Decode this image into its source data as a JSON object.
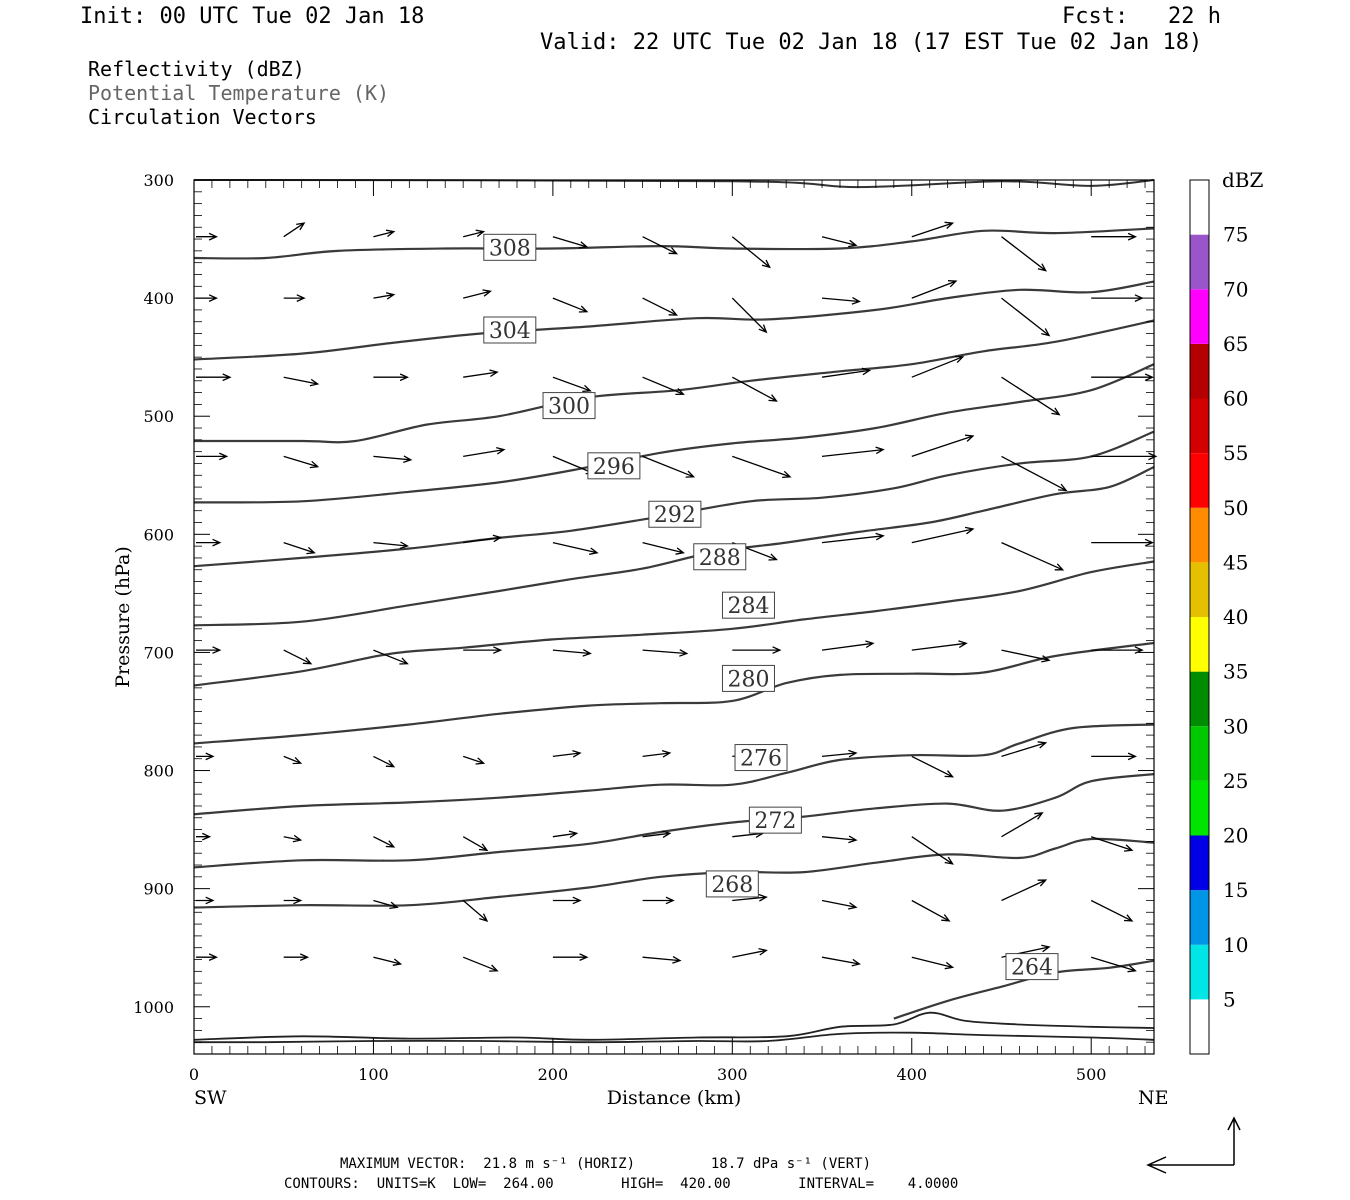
{
  "header": {
    "init": "Init: 00 UTC Tue 02 Jan 18",
    "fcst": "Fcst:   22 h",
    "valid": "Valid: 22 UTC Tue 02 Jan 18 (17 EST Tue 02 Jan 18)"
  },
  "fields": [
    {
      "label": "Reflectivity (dBZ)",
      "color": "#000000"
    },
    {
      "label": "Potential Temperature (K)",
      "color": "#666666"
    },
    {
      "label": "Circulation Vectors",
      "color": "#000000"
    }
  ],
  "footer": {
    "line1": "MAXIMUM VECTOR:  21.8 m s⁻¹ (HORIZ)         18.7 dPa s⁻¹ (VERT)",
    "line2": "CONTOURS:  UNITS=K  LOW=  264.00        HIGH=  420.00        INTERVAL=    4.0000"
  },
  "chart_data": {
    "type": "cross-section contour + vector",
    "xlabel": "Distance (km)",
    "ylabel": "Pressure (hPa)",
    "xlim": [
      0,
      535
    ],
    "ylim": [
      1040,
      300
    ],
    "x_ticks": [
      0,
      100,
      200,
      300,
      400,
      500
    ],
    "y_ticks": [
      300,
      400,
      500,
      600,
      700,
      800,
      900,
      1000
    ],
    "x_end_labels": {
      "left": "SW",
      "right": "NE"
    },
    "colorbar": {
      "unit": "dBZ",
      "levels": [
        5,
        10,
        15,
        20,
        25,
        30,
        35,
        40,
        45,
        50,
        55,
        60,
        65,
        70,
        75
      ],
      "colors": [
        "#ffffff",
        "#00e5e5",
        "#0095e5",
        "#0000e5",
        "#00e500",
        "#00c800",
        "#008c00",
        "#ffff00",
        "#e5c000",
        "#ff8c00",
        "#ff0000",
        "#d40000",
        "#b40000",
        "#ff00ff",
        "#9955c9",
        "#ffffff"
      ]
    },
    "contours": [
      {
        "label": "308",
        "label_pos": [
          176,
          357
        ],
        "points": [
          [
            0,
            366
          ],
          [
            40,
            366
          ],
          [
            80,
            360
          ],
          [
            140,
            358
          ],
          [
            200,
            358
          ],
          [
            260,
            356
          ],
          [
            300,
            358
          ],
          [
            360,
            358
          ],
          [
            400,
            352
          ],
          [
            440,
            343
          ],
          [
            480,
            345
          ],
          [
            535,
            341
          ]
        ]
      },
      {
        "label": "304",
        "label_pos": [
          176,
          427
        ],
        "points": [
          [
            0,
            452
          ],
          [
            60,
            447
          ],
          [
            110,
            438
          ],
          [
            160,
            430
          ],
          [
            220,
            424
          ],
          [
            280,
            417
          ],
          [
            320,
            418
          ],
          [
            380,
            410
          ],
          [
            420,
            400
          ],
          [
            460,
            393
          ],
          [
            500,
            395
          ],
          [
            535,
            386
          ]
        ]
      },
      {
        "label": "300",
        "label_pos": [
          209,
          491
        ],
        "points": [
          [
            0,
            521
          ],
          [
            60,
            521
          ],
          [
            90,
            521
          ],
          [
            130,
            507
          ],
          [
            170,
            500
          ],
          [
            220,
            484
          ],
          [
            270,
            478
          ],
          [
            310,
            470
          ],
          [
            360,
            462
          ],
          [
            400,
            456
          ],
          [
            440,
            445
          ],
          [
            480,
            437
          ],
          [
            535,
            419
          ]
        ]
      },
      {
        "label": "296",
        "label_pos": [
          234,
          542
        ],
        "points": [
          [
            0,
            573
          ],
          [
            60,
            572
          ],
          [
            120,
            564
          ],
          [
            170,
            556
          ],
          [
            210,
            546
          ],
          [
            260,
            531
          ],
          [
            300,
            523
          ],
          [
            340,
            518
          ],
          [
            380,
            510
          ],
          [
            420,
            497
          ],
          [
            460,
            488
          ],
          [
            500,
            478
          ],
          [
            535,
            456
          ]
        ]
      },
      {
        "label": "292",
        "label_pos": [
          268,
          583
        ],
        "points": [
          [
            0,
            627
          ],
          [
            60,
            620
          ],
          [
            120,
            612
          ],
          [
            170,
            603
          ],
          [
            210,
            597
          ],
          [
            260,
            585
          ],
          [
            310,
            572
          ],
          [
            350,
            569
          ],
          [
            390,
            561
          ],
          [
            420,
            550
          ],
          [
            460,
            540
          ],
          [
            500,
            534
          ],
          [
            535,
            513
          ]
        ]
      },
      {
        "label": "288",
        "label_pos": [
          293,
          619
        ],
        "points": [
          [
            0,
            677
          ],
          [
            60,
            674
          ],
          [
            120,
            660
          ],
          [
            170,
            648
          ],
          [
            210,
            638
          ],
          [
            250,
            629
          ],
          [
            290,
            615
          ],
          [
            330,
            607
          ],
          [
            370,
            598
          ],
          [
            410,
            590
          ],
          [
            440,
            580
          ],
          [
            480,
            566
          ],
          [
            510,
            560
          ],
          [
            535,
            543
          ]
        ]
      },
      {
        "label": "284",
        "label_pos": [
          309,
          660
        ],
        "points": [
          [
            0,
            728
          ],
          [
            60,
            716
          ],
          [
            110,
            701
          ],
          [
            150,
            696
          ],
          [
            200,
            689
          ],
          [
            250,
            685
          ],
          [
            300,
            680
          ],
          [
            340,
            672
          ],
          [
            380,
            665
          ],
          [
            420,
            657
          ],
          [
            460,
            648
          ],
          [
            500,
            632
          ],
          [
            535,
            623
          ]
        ]
      },
      {
        "label": "280",
        "label_pos": [
          309,
          722
        ],
        "points": [
          [
            0,
            777
          ],
          [
            60,
            770
          ],
          [
            120,
            761
          ],
          [
            170,
            752
          ],
          [
            220,
            745
          ],
          [
            260,
            743
          ],
          [
            300,
            741
          ],
          [
            330,
            726
          ],
          [
            360,
            719
          ],
          [
            400,
            718
          ],
          [
            440,
            717
          ],
          [
            480,
            703
          ],
          [
            535,
            692
          ]
        ]
      },
      {
        "label": "276",
        "label_pos": [
          316,
          789
        ],
        "points": [
          [
            0,
            837
          ],
          [
            60,
            830
          ],
          [
            120,
            827
          ],
          [
            170,
            823
          ],
          [
            220,
            817
          ],
          [
            260,
            812
          ],
          [
            300,
            812
          ],
          [
            330,
            802
          ],
          [
            360,
            791
          ],
          [
            400,
            787
          ],
          [
            440,
            787
          ],
          [
            460,
            777
          ],
          [
            490,
            764
          ],
          [
            535,
            761
          ]
        ]
      },
      {
        "label": "272",
        "label_pos": [
          324,
          842
        ],
        "points": [
          [
            0,
            882
          ],
          [
            60,
            876
          ],
          [
            120,
            876
          ],
          [
            170,
            869
          ],
          [
            220,
            862
          ],
          [
            260,
            852
          ],
          [
            300,
            844
          ],
          [
            340,
            839
          ],
          [
            380,
            832
          ],
          [
            420,
            828
          ],
          [
            450,
            834
          ],
          [
            480,
            823
          ],
          [
            500,
            809
          ],
          [
            535,
            803
          ]
        ]
      },
      {
        "label": "268",
        "label_pos": [
          300,
          896
        ],
        "points": [
          [
            0,
            916
          ],
          [
            60,
            914
          ],
          [
            120,
            914
          ],
          [
            170,
            907
          ],
          [
            220,
            899
          ],
          [
            260,
            890
          ],
          [
            300,
            886
          ],
          [
            340,
            886
          ],
          [
            380,
            878
          ],
          [
            420,
            871
          ],
          [
            460,
            874
          ],
          [
            480,
            866
          ],
          [
            500,
            858
          ],
          [
            535,
            861
          ]
        ]
      },
      {
        "label": "264",
        "label_pos": [
          467,
          966
        ],
        "points": [
          [
            390,
            1010
          ],
          [
            420,
            995
          ],
          [
            450,
            983
          ],
          [
            480,
            971
          ],
          [
            510,
            967
          ],
          [
            535,
            961
          ]
        ]
      }
    ],
    "surface_contours": [
      {
        "points": [
          [
            0,
            1028
          ],
          [
            60,
            1025
          ],
          [
            120,
            1027
          ],
          [
            180,
            1026
          ],
          [
            220,
            1028
          ],
          [
            280,
            1026
          ],
          [
            330,
            1025
          ],
          [
            360,
            1017
          ],
          [
            390,
            1015
          ],
          [
            410,
            1005
          ],
          [
            430,
            1012
          ],
          [
            460,
            1015
          ],
          [
            500,
            1017
          ],
          [
            535,
            1018
          ]
        ]
      },
      {
        "points": [
          [
            0,
            1030
          ],
          [
            40,
            1030
          ],
          [
            100,
            1029
          ],
          [
            160,
            1029
          ],
          [
            220,
            1030
          ],
          [
            280,
            1029
          ],
          [
            320,
            1029
          ],
          [
            360,
            1023
          ],
          [
            400,
            1022
          ],
          [
            440,
            1024
          ],
          [
            500,
            1026
          ],
          [
            535,
            1028
          ]
        ]
      }
    ],
    "vectors_pressures": [
      348,
      400,
      467,
      534,
      607,
      698,
      788,
      856,
      910,
      958
    ],
    "vectors_x": [
      0,
      50,
      100,
      150,
      200,
      250,
      300,
      350,
      400,
      450,
      500
    ],
    "vectors": [
      [
        [
          12,
          0
        ],
        [
          12,
          8
        ],
        [
          12,
          3
        ],
        [
          12,
          3
        ],
        [
          20,
          -6
        ],
        [
          20,
          -10
        ],
        [
          22,
          -18
        ],
        [
          20,
          -5
        ],
        [
          24,
          8
        ],
        [
          26,
          -20
        ],
        [
          26,
          0
        ]
      ],
      [
        [
          12,
          0
        ],
        [
          12,
          0
        ],
        [
          12,
          2
        ],
        [
          16,
          4
        ],
        [
          20,
          -8
        ],
        [
          20,
          -10
        ],
        [
          20,
          -20
        ],
        [
          22,
          -2
        ],
        [
          26,
          10
        ],
        [
          28,
          -22
        ],
        [
          30,
          0
        ]
      ],
      [
        [
          20,
          0
        ],
        [
          20,
          -4
        ],
        [
          20,
          0
        ],
        [
          20,
          3
        ],
        [
          22,
          -8
        ],
        [
          24,
          -10
        ],
        [
          26,
          -14
        ],
        [
          28,
          4
        ],
        [
          30,
          12
        ],
        [
          34,
          -22
        ],
        [
          36,
          0
        ]
      ],
      [
        [
          18,
          0
        ],
        [
          20,
          -6
        ],
        [
          22,
          -2
        ],
        [
          24,
          4
        ],
        [
          24,
          -10
        ],
        [
          30,
          -12
        ],
        [
          34,
          -12
        ],
        [
          36,
          4
        ],
        [
          36,
          12
        ],
        [
          38,
          -20
        ],
        [
          38,
          0
        ]
      ],
      [
        [
          14,
          0
        ],
        [
          18,
          -6
        ],
        [
          20,
          -2
        ],
        [
          22,
          3
        ],
        [
          26,
          -6
        ],
        [
          24,
          -6
        ],
        [
          26,
          -10
        ],
        [
          36,
          4
        ],
        [
          36,
          8
        ],
        [
          36,
          -16
        ],
        [
          36,
          0
        ]
      ],
      [
        [
          14,
          0
        ],
        [
          16,
          -8
        ],
        [
          20,
          -8
        ],
        [
          22,
          0
        ],
        [
          22,
          -2
        ],
        [
          26,
          -2
        ],
        [
          28,
          0
        ],
        [
          30,
          4
        ],
        [
          32,
          4
        ],
        [
          28,
          -6
        ],
        [
          30,
          0
        ]
      ],
      [
        [
          10,
          0
        ],
        [
          10,
          -4
        ],
        [
          12,
          -6
        ],
        [
          12,
          -4
        ],
        [
          16,
          2
        ],
        [
          16,
          2
        ],
        [
          18,
          2
        ],
        [
          20,
          2
        ],
        [
          24,
          -12
        ],
        [
          26,
          8
        ],
        [
          26,
          0
        ]
      ],
      [
        [
          8,
          0
        ],
        [
          10,
          -2
        ],
        [
          12,
          -6
        ],
        [
          14,
          -8
        ],
        [
          14,
          2
        ],
        [
          16,
          2
        ],
        [
          18,
          2
        ],
        [
          20,
          -2
        ],
        [
          24,
          -16
        ],
        [
          24,
          14
        ],
        [
          24,
          -8
        ]
      ],
      [
        [
          10,
          0
        ],
        [
          10,
          0
        ],
        [
          14,
          -4
        ],
        [
          14,
          -12
        ],
        [
          16,
          0
        ],
        [
          18,
          0
        ],
        [
          20,
          2
        ],
        [
          20,
          -4
        ],
        [
          22,
          -12
        ],
        [
          26,
          12
        ],
        [
          24,
          -12
        ]
      ],
      [
        [
          12,
          0
        ],
        [
          14,
          0
        ],
        [
          16,
          -4
        ],
        [
          20,
          -8
        ],
        [
          20,
          0
        ],
        [
          22,
          -2
        ],
        [
          20,
          4
        ],
        [
          22,
          -4
        ],
        [
          24,
          -6
        ],
        [
          28,
          6
        ],
        [
          26,
          -8
        ]
      ]
    ]
  }
}
